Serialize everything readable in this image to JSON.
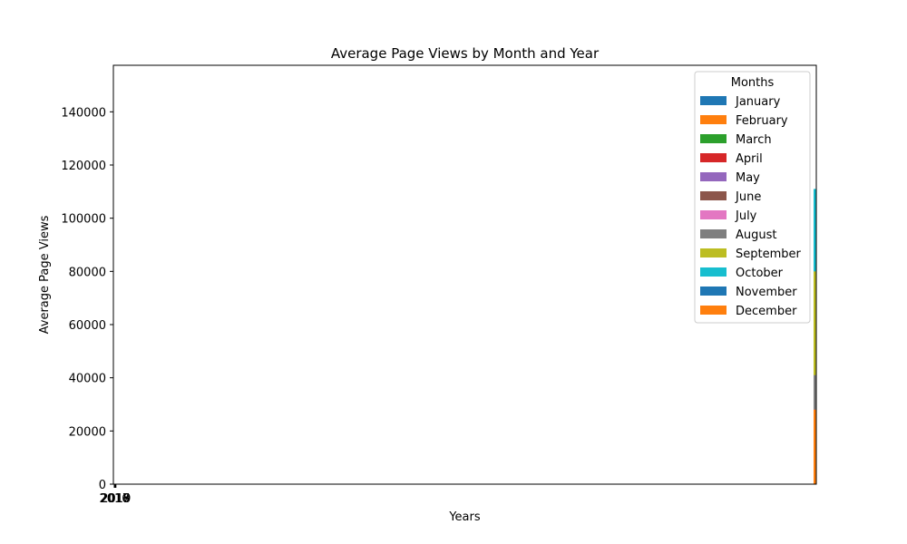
{
  "chart_data": {
    "type": "bar",
    "title": "Average Page Views by Month and Year",
    "xlabel": "Years",
    "ylabel": "Average Page Views",
    "legend_title": "Months",
    "legend_position": "top-right",
    "grid": false,
    "categories": [
      "2016",
      "2017",
      "2018",
      "2019"
    ],
    "ylim": [
      0,
      157500
    ],
    "yticks": [
      0,
      20000,
      40000,
      60000,
      80000,
      100000,
      120000,
      140000
    ],
    "ytick_labels": [
      "0",
      "20000",
      "40000",
      "60000",
      "80000",
      "100000",
      "120000",
      "140000"
    ],
    "colors": [
      "#1f77b4",
      "#ff7f0e",
      "#2ca02c",
      "#d62728",
      "#9467bd",
      "#8c564b",
      "#e377c2",
      "#7f7f7f",
      "#bcbd22",
      "#17becf",
      "#1f77b4",
      "#ff7f0e"
    ],
    "series": [
      {
        "name": "January",
        "values": [
          0,
          0,
          0,
          0
        ]
      },
      {
        "name": "February",
        "values": [
          0,
          0,
          0,
          0
        ]
      },
      {
        "name": "March",
        "values": [
          0,
          0,
          0,
          0
        ]
      },
      {
        "name": "April",
        "values": [
          0,
          0,
          0,
          0
        ]
      },
      {
        "name": "May",
        "values": [
          0,
          28000,
          0,
          0
        ]
      },
      {
        "name": "June",
        "values": [
          0,
          28000,
          0,
          0
        ]
      },
      {
        "name": "July",
        "values": [
          0,
          28000,
          0,
          0
        ]
      },
      {
        "name": "August",
        "values": [
          0,
          41000,
          0,
          0
        ]
      },
      {
        "name": "September",
        "values": [
          0,
          80000,
          0,
          0
        ]
      },
      {
        "name": "October",
        "values": [
          0,
          111000,
          0,
          0
        ]
      },
      {
        "name": "November",
        "values": [
          0,
          0,
          0,
          0
        ]
      },
      {
        "name": "December",
        "values": [
          0,
          28000,
          0,
          0
        ]
      }
    ]
  }
}
